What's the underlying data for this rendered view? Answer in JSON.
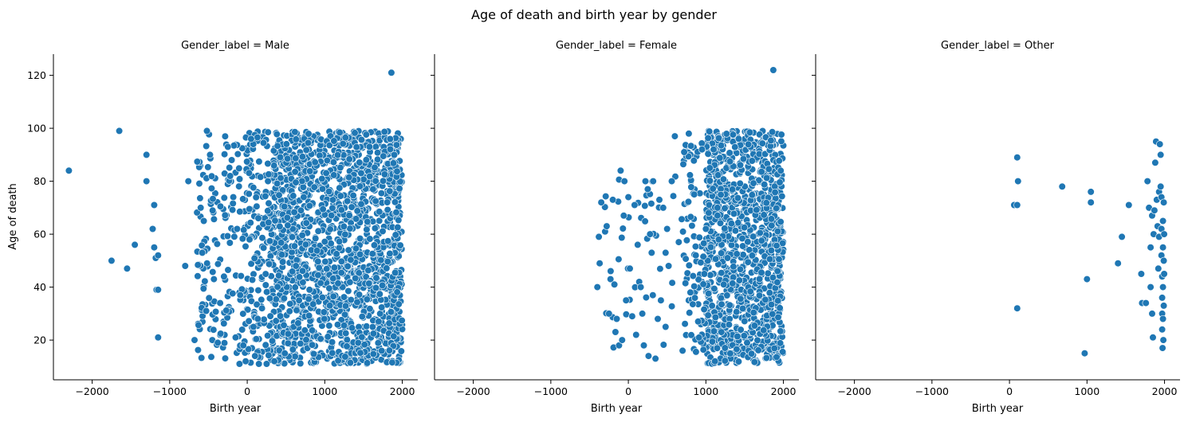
{
  "chart_data": {
    "type": "scatter",
    "title": "Age of death and birth year by gender",
    "xlabel": "Birth year",
    "ylabel": "Age of death",
    "xlim": [
      -2500,
      2200
    ],
    "ylim": [
      5,
      128
    ],
    "xticks": [
      -2000,
      -1000,
      0,
      1000,
      2000
    ],
    "yticks": [
      20,
      40,
      60,
      80,
      100,
      120
    ],
    "xtick_labels": [
      "−2000",
      "−1000",
      "0",
      "1000",
      "2000"
    ],
    "ytick_labels": [
      "20",
      "40",
      "60",
      "80",
      "100",
      "120"
    ],
    "grid": false,
    "marker_color": "#1f77b4",
    "panels": [
      {
        "title": "Gender_label = Male",
        "points": [
          [
            -2300,
            84
          ],
          [
            -1650,
            99
          ],
          [
            -1300,
            90
          ],
          [
            -1300,
            80
          ],
          [
            -1750,
            50
          ],
          [
            -1550,
            47
          ],
          [
            -1450,
            56
          ],
          [
            -1200,
            71
          ],
          [
            -1220,
            62
          ],
          [
            -1200,
            55
          ],
          [
            -1180,
            51
          ],
          [
            -1150,
            52
          ],
          [
            -1170,
            39
          ],
          [
            -1150,
            39
          ],
          [
            -1150,
            21
          ],
          [
            -800,
            48
          ],
          [
            -760,
            80
          ],
          [
            -680,
            20
          ],
          [
            -520,
            99
          ],
          [
            -480,
            90
          ],
          [
            -450,
            20
          ],
          [
            -380,
            19
          ],
          [
            -250,
            93
          ],
          [
            -200,
            88
          ],
          [
            -150,
            21
          ],
          [
            -100,
            11
          ],
          [
            -50,
            18
          ],
          [
            -20,
            12
          ],
          [
            50,
            96
          ],
          [
            100,
            14
          ],
          [
            -580,
            53
          ],
          [
            -560,
            65
          ],
          [
            -530,
            31
          ],
          [
            -600,
            70
          ],
          [
            -430,
            43
          ],
          [
            -350,
            34
          ],
          [
            -300,
            44
          ],
          [
            -220,
            82
          ],
          [
            -180,
            74
          ],
          [
            -130,
            62
          ],
          [
            -90,
            37
          ],
          [
            30,
            58
          ],
          [
            80,
            25
          ],
          [
            150,
            11
          ],
          [
            250,
            11
          ],
          [
            350,
            12
          ],
          [
            1860,
            121
          ]
        ],
        "dense_regions": [
          {
            "x": [
              300,
              2000
            ],
            "y": [
              11,
              99
            ],
            "n": 1700
          },
          {
            "x": [
              -50,
              300
            ],
            "y": [
              11,
              99
            ],
            "n": 160
          },
          {
            "x": [
              -650,
              -50
            ],
            "y": [
              13,
              98
            ],
            "n": 140
          }
        ]
      },
      {
        "title": "Gender_label = Female",
        "points": [
          [
            1870,
            122
          ],
          [
            -400,
            40
          ],
          [
            -380,
            59
          ],
          [
            -370,
            49
          ],
          [
            -350,
            72
          ],
          [
            -300,
            61
          ],
          [
            -280,
            63
          ],
          [
            -250,
            30
          ],
          [
            -230,
            43
          ],
          [
            -200,
            73
          ],
          [
            -180,
            41
          ],
          [
            -150,
            28
          ],
          [
            -120,
            18
          ],
          [
            -100,
            84
          ],
          [
            -80,
            20
          ],
          [
            -60,
            67
          ],
          [
            -50,
            80
          ],
          [
            -30,
            35
          ],
          [
            0,
            74
          ],
          [
            20,
            47
          ],
          [
            50,
            29
          ],
          [
            80,
            71
          ],
          [
            100,
            22
          ],
          [
            120,
            56
          ],
          [
            140,
            42
          ],
          [
            160,
            40
          ],
          [
            180,
            30
          ],
          [
            200,
            18
          ],
          [
            220,
            80
          ],
          [
            250,
            77
          ],
          [
            260,
            14
          ],
          [
            280,
            60
          ],
          [
            300,
            53
          ],
          [
            320,
            80
          ],
          [
            350,
            13
          ],
          [
            380,
            28
          ],
          [
            400,
            73
          ],
          [
            420,
            35
          ],
          [
            450,
            70
          ],
          [
            480,
            25
          ],
          [
            500,
            62
          ],
          [
            520,
            48
          ],
          [
            560,
            80
          ],
          [
            600,
            97
          ],
          [
            650,
            57
          ],
          [
            700,
            16
          ],
          [
            720,
            91
          ],
          [
            780,
            98
          ],
          [
            800,
            38
          ],
          [
            850,
            75
          ],
          [
            870,
            52
          ],
          [
            900,
            27
          ],
          [
            950,
            92
          ],
          [
            980,
            45
          ],
          [
            1000,
            62
          ],
          [
            1050,
            85
          ],
          [
            1080,
            33
          ],
          [
            1100,
            92
          ],
          [
            1150,
            70
          ],
          [
            1200,
            23
          ],
          [
            1230,
            41
          ]
        ],
        "dense_regions": [
          {
            "x": [
              1000,
              2000
            ],
            "y": [
              11,
              99
            ],
            "n": 1100
          },
          {
            "x": [
              700,
              1000
            ],
            "y": [
              15,
              95
            ],
            "n": 80
          },
          {
            "x": [
              -400,
              700
            ],
            "y": [
              13,
              84
            ],
            "n": 40
          }
        ]
      },
      {
        "title": "Gender_label = Other",
        "points": [
          [
            60,
            71
          ],
          [
            100,
            71
          ],
          [
            100,
            89
          ],
          [
            110,
            80
          ],
          [
            100,
            32
          ],
          [
            680,
            78
          ],
          [
            970,
            15
          ],
          [
            1000,
            43
          ],
          [
            1050,
            76
          ],
          [
            1050,
            72
          ],
          [
            1400,
            49
          ],
          [
            1450,
            59
          ],
          [
            1540,
            71
          ],
          [
            1700,
            45
          ],
          [
            1710,
            34
          ],
          [
            1760,
            34
          ],
          [
            1780,
            80
          ],
          [
            1800,
            70
          ],
          [
            1820,
            55
          ],
          [
            1820,
            40
          ],
          [
            1840,
            67
          ],
          [
            1840,
            30
          ],
          [
            1850,
            21
          ],
          [
            1860,
            60
          ],
          [
            1870,
            69
          ],
          [
            1880,
            87
          ],
          [
            1890,
            95
          ],
          [
            1900,
            73
          ],
          [
            1910,
            63
          ],
          [
            1920,
            47
          ],
          [
            1930,
            59
          ],
          [
            1930,
            76
          ],
          [
            1940,
            94
          ],
          [
            1950,
            90
          ],
          [
            1950,
            78
          ],
          [
            1960,
            74
          ],
          [
            1960,
            62
          ],
          [
            1960,
            52
          ],
          [
            1970,
            44
          ],
          [
            1970,
            36
          ],
          [
            1970,
            30
          ],
          [
            1970,
            24
          ],
          [
            1975,
            17
          ],
          [
            1980,
            40
          ],
          [
            1980,
            65
          ],
          [
            1980,
            55
          ],
          [
            1980,
            28
          ],
          [
            1985,
            20
          ],
          [
            1990,
            50
          ],
          [
            1990,
            33
          ],
          [
            1990,
            72
          ],
          [
            1995,
            45
          ],
          [
            1995,
            60
          ]
        ],
        "dense_regions": []
      }
    ]
  }
}
